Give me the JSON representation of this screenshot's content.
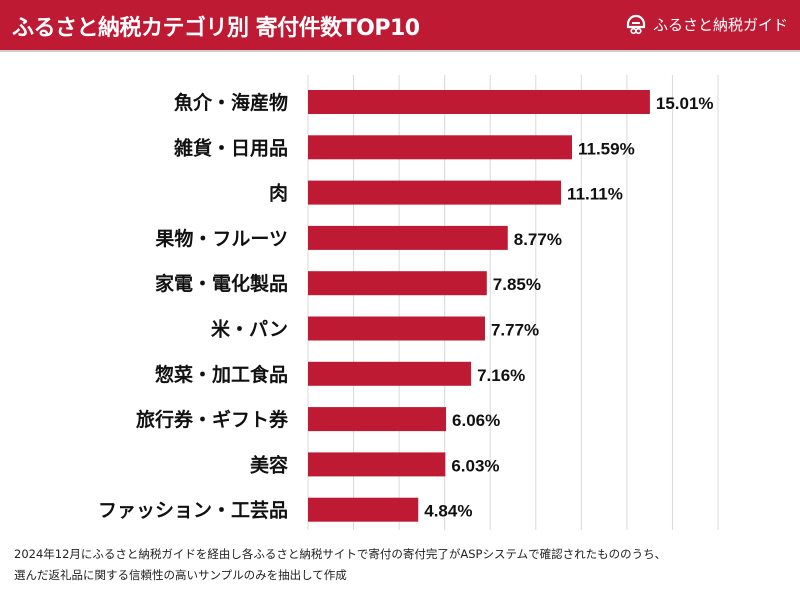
{
  "header": {
    "title": "ふるさと納税カテゴリ別 寄付件数TOP10",
    "logo_text": "ふるさと納税ガイド",
    "logo_icon": "house-gift-icon",
    "background_color": "#be1a33"
  },
  "chart_data": {
    "type": "bar",
    "orientation": "horizontal",
    "title": "ふるさと納税カテゴリ別 寄付件数TOP10",
    "categories": [
      "魚介・海産物",
      "雑貨・日用品",
      "肉",
      "果物・フルーツ",
      "家電・電化製品",
      "米・パン",
      "惣菜・加工食品",
      "旅行券・ギフト券",
      "美容",
      "ファッション・工芸品"
    ],
    "values": [
      15.01,
      11.59,
      11.11,
      8.77,
      7.85,
      7.77,
      7.16,
      6.06,
      6.03,
      4.84
    ],
    "data_labels": [
      "15.01%",
      "11.59%",
      "11.11%",
      "8.77%",
      "7.85%",
      "7.77%",
      "7.16%",
      "6.06%",
      "6.03%",
      "4.84%"
    ],
    "xlim": [
      0,
      18
    ],
    "grid": true,
    "grid_step": 2,
    "bar_color": "#be1a33"
  },
  "footnote": {
    "line1": "2024年12月にふるさと納税ガイドを経由し各ふるさと納税サイトで寄付の寄付完了がASPシステムで確認されたもののうち、",
    "line2": "選んだ返礼品に関する信頼性の高いサンプルのみを抽出して作成"
  }
}
